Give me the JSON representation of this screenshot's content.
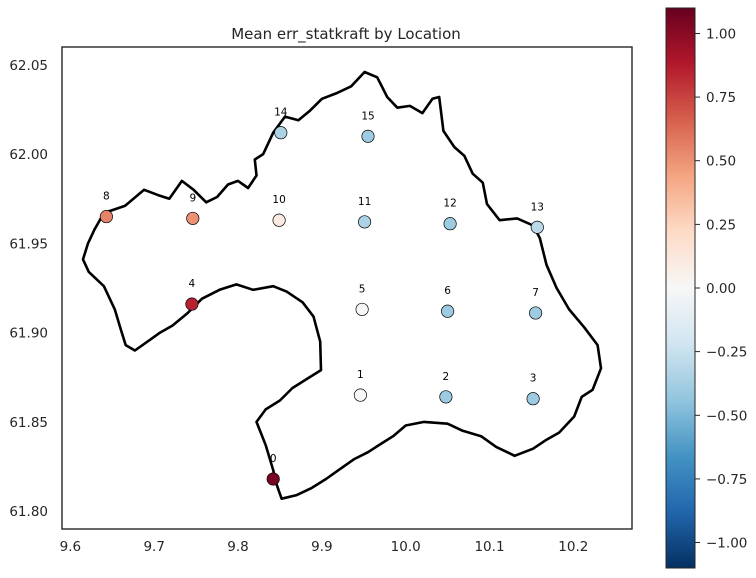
{
  "chart_data": {
    "type": "scatter",
    "title": "Mean err_statkraft by Location",
    "xlabel": "",
    "ylabel": "",
    "xlim": [
      9.59,
      10.27
    ],
    "ylim": [
      61.79,
      62.06
    ],
    "x_ticks": [
      "9.6",
      "9.7",
      "9.8",
      "9.9",
      "10.0",
      "10.1",
      "10.2"
    ],
    "x_tick_values": [
      9.6,
      9.7,
      9.8,
      9.9,
      10.0,
      10.1,
      10.2
    ],
    "y_ticks": [
      "61.80",
      "61.85",
      "61.90",
      "61.95",
      "62.00",
      "62.05"
    ],
    "y_tick_values": [
      61.8,
      61.85,
      61.9,
      61.95,
      62.0,
      62.05
    ],
    "grid": false,
    "colormap": "RdBu_r",
    "colorbar": {
      "vmin": -1.1,
      "vmax": 1.1,
      "ticks": [
        "−1.00",
        "−0.75",
        "−0.50",
        "−0.25",
        "0.00",
        "0.25",
        "0.50",
        "0.75",
        "1.00"
      ],
      "tick_values": [
        -1.0,
        -0.75,
        -0.5,
        -0.25,
        0.0,
        0.25,
        0.5,
        0.75,
        1.0
      ]
    },
    "points": [
      {
        "label": "0",
        "lon": 9.842,
        "lat": 61.818,
        "value": 1.05
      },
      {
        "label": "1",
        "lon": 9.946,
        "lat": 61.865,
        "value": 0.0
      },
      {
        "label": "2",
        "lon": 10.048,
        "lat": 61.864,
        "value": -0.4
      },
      {
        "label": "3",
        "lon": 10.152,
        "lat": 61.863,
        "value": -0.4
      },
      {
        "label": "4",
        "lon": 9.745,
        "lat": 61.916,
        "value": 0.85
      },
      {
        "label": "5",
        "lon": 9.948,
        "lat": 61.913,
        "value": 0.0
      },
      {
        "label": "6",
        "lon": 10.05,
        "lat": 61.912,
        "value": -0.4
      },
      {
        "label": "7",
        "lon": 10.155,
        "lat": 61.911,
        "value": -0.4
      },
      {
        "label": "8",
        "lon": 9.643,
        "lat": 61.965,
        "value": 0.55
      },
      {
        "label": "9",
        "lon": 9.746,
        "lat": 61.964,
        "value": 0.5
      },
      {
        "label": "10",
        "lon": 9.849,
        "lat": 61.963,
        "value": 0.1
      },
      {
        "label": "11",
        "lon": 9.951,
        "lat": 61.962,
        "value": -0.35
      },
      {
        "label": "12",
        "lon": 10.053,
        "lat": 61.961,
        "value": -0.4
      },
      {
        "label": "13",
        "lon": 10.157,
        "lat": 61.959,
        "value": -0.3
      },
      {
        "label": "14",
        "lon": 9.851,
        "lat": 62.012,
        "value": -0.35
      },
      {
        "label": "15",
        "lon": 9.955,
        "lat": 62.01,
        "value": -0.4
      }
    ],
    "boundary": [
      [
        9.64,
        61.967
      ],
      [
        9.665,
        61.971
      ],
      [
        9.688,
        61.98
      ],
      [
        9.705,
        61.977
      ],
      [
        9.718,
        61.975
      ],
      [
        9.733,
        61.985
      ],
      [
        9.747,
        61.98
      ],
      [
        9.762,
        61.973
      ],
      [
        9.775,
        61.976
      ],
      [
        9.788,
        61.983
      ],
      [
        9.8,
        61.985
      ],
      [
        9.812,
        61.981
      ],
      [
        9.822,
        61.988
      ],
      [
        9.82,
        61.997
      ],
      [
        9.83,
        62.0
      ],
      [
        9.842,
        62.012
      ],
      [
        9.856,
        62.021
      ],
      [
        9.872,
        62.019
      ],
      [
        9.885,
        62.024
      ],
      [
        9.9,
        62.031
      ],
      [
        9.917,
        62.034
      ],
      [
        9.935,
        62.038
      ],
      [
        9.951,
        62.046
      ],
      [
        9.966,
        62.043
      ],
      [
        9.978,
        62.032
      ],
      [
        9.99,
        62.026
      ],
      [
        10.005,
        62.027
      ],
      [
        10.02,
        62.023
      ],
      [
        10.032,
        62.031
      ],
      [
        10.04,
        62.032
      ],
      [
        10.045,
        62.013
      ],
      [
        10.058,
        62.004
      ],
      [
        10.07,
        61.999
      ],
      [
        10.08,
        61.989
      ],
      [
        10.092,
        61.984
      ],
      [
        10.097,
        61.972
      ],
      [
        10.112,
        61.963
      ],
      [
        10.133,
        61.964
      ],
      [
        10.152,
        61.96
      ],
      [
        10.16,
        61.953
      ],
      [
        10.168,
        61.938
      ],
      [
        10.18,
        61.925
      ],
      [
        10.195,
        61.913
      ],
      [
        10.213,
        61.903
      ],
      [
        10.229,
        61.893
      ],
      [
        10.233,
        61.88
      ],
      [
        10.223,
        61.868
      ],
      [
        10.21,
        61.864
      ],
      [
        10.201,
        61.853
      ],
      [
        10.183,
        61.844
      ],
      [
        10.168,
        61.84
      ],
      [
        10.152,
        61.835
      ],
      [
        10.13,
        61.831
      ],
      [
        10.108,
        61.836
      ],
      [
        10.09,
        61.842
      ],
      [
        10.068,
        61.845
      ],
      [
        10.05,
        61.849
      ],
      [
        10.022,
        61.85
      ],
      [
        10.0,
        61.848
      ],
      [
        9.985,
        61.842
      ],
      [
        9.968,
        61.837
      ],
      [
        9.955,
        61.833
      ],
      [
        9.938,
        61.829
      ],
      [
        9.92,
        61.823
      ],
      [
        9.905,
        61.818
      ],
      [
        9.888,
        61.813
      ],
      [
        9.87,
        61.809
      ],
      [
        9.852,
        61.807
      ],
      [
        9.846,
        61.815
      ],
      [
        9.842,
        61.823
      ],
      [
        9.833,
        61.837
      ],
      [
        9.822,
        61.85
      ],
      [
        9.833,
        61.857
      ],
      [
        9.85,
        61.862
      ],
      [
        9.865,
        61.869
      ],
      [
        9.882,
        61.874
      ],
      [
        9.899,
        61.879
      ],
      [
        9.898,
        61.895
      ],
      [
        9.89,
        61.909
      ],
      [
        9.877,
        61.917
      ],
      [
        9.858,
        61.923
      ],
      [
        9.842,
        61.926
      ],
      [
        9.818,
        61.924
      ],
      [
        9.798,
        61.927
      ],
      [
        9.778,
        61.924
      ],
      [
        9.757,
        61.919
      ],
      [
        9.74,
        61.911
      ],
      [
        9.722,
        61.904
      ],
      [
        9.707,
        61.9
      ],
      [
        9.695,
        61.896
      ],
      [
        9.677,
        61.89
      ],
      [
        9.666,
        61.893
      ],
      [
        9.66,
        61.902
      ],
      [
        9.653,
        61.913
      ],
      [
        9.64,
        61.926
      ],
      [
        9.622,
        61.934
      ],
      [
        9.615,
        61.941
      ],
      [
        9.621,
        61.95
      ],
      [
        9.629,
        61.958
      ],
      [
        9.64,
        61.967
      ]
    ]
  }
}
